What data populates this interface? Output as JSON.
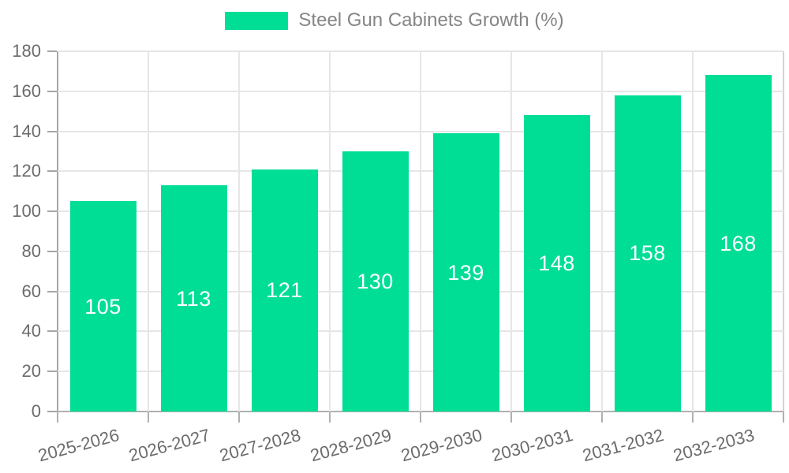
{
  "legend": {
    "label": "Steel Gun Cabinets Growth (%)"
  },
  "chart_data": {
    "type": "bar",
    "title": "",
    "series_name": "Steel Gun Cabinets Growth (%)",
    "categories": [
      "2025-2026",
      "2026-2027",
      "2027-2028",
      "2028-2029",
      "2029-2030",
      "2030-2031",
      "2031-2032",
      "2032-2033"
    ],
    "values": [
      105,
      113,
      121,
      130,
      139,
      148,
      158,
      168
    ],
    "value_labels": [
      "105",
      "113",
      "121",
      "130",
      "139",
      "148",
      "158",
      "168"
    ],
    "xlabel": "",
    "ylabel": "",
    "ylim": [
      0,
      180
    ],
    "ytick_step": 20,
    "yticks": [
      0,
      20,
      40,
      60,
      80,
      100,
      120,
      140,
      160,
      180
    ],
    "grid": true,
    "legend_position": "top-center",
    "x_label_rotation_deg": -15,
    "colors": {
      "bar": "#00de96",
      "grid": "#e6e6e6",
      "axis_text": "#6b6b6b",
      "legend_text": "#858585",
      "value_text": "#ffffff",
      "background": "#ffffff"
    }
  }
}
